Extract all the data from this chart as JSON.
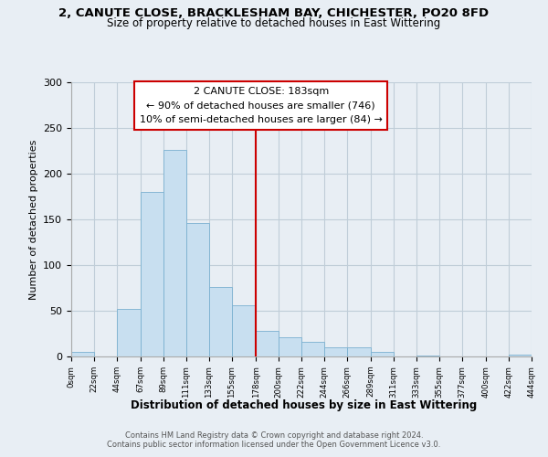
{
  "title1": "2, CANUTE CLOSE, BRACKLESHAM BAY, CHICHESTER, PO20 8FD",
  "title2": "Size of property relative to detached houses in East Wittering",
  "xlabel": "Distribution of detached houses by size in East Wittering",
  "ylabel": "Number of detached properties",
  "bar_color": "#c8dff0",
  "bar_edge_color": "#7ab0d0",
  "vline_x": 178,
  "vline_color": "#cc0000",
  "annotation_title": "2 CANUTE CLOSE: 183sqm",
  "annotation_line1": "← 90% of detached houses are smaller (746)",
  "annotation_line2": "10% of semi-detached houses are larger (84) →",
  "bin_edges": [
    0,
    22,
    44,
    67,
    89,
    111,
    133,
    155,
    178,
    200,
    222,
    244,
    266,
    289,
    311,
    333,
    355,
    377,
    400,
    422,
    444
  ],
  "bin_labels": [
    "0sqm",
    "22sqm",
    "44sqm",
    "67sqm",
    "89sqm",
    "111sqm",
    "133sqm",
    "155sqm",
    "178sqm",
    "200sqm",
    "222sqm",
    "244sqm",
    "266sqm",
    "289sqm",
    "311sqm",
    "333sqm",
    "355sqm",
    "377sqm",
    "400sqm",
    "422sqm",
    "444sqm"
  ],
  "counts": [
    5,
    0,
    52,
    180,
    226,
    146,
    76,
    56,
    28,
    21,
    16,
    10,
    10,
    5,
    0,
    1,
    0,
    0,
    0,
    2
  ],
  "ylim": [
    0,
    300
  ],
  "xlim": [
    0,
    444
  ],
  "yticks": [
    0,
    50,
    100,
    150,
    200,
    250,
    300
  ],
  "footer1": "Contains HM Land Registry data © Crown copyright and database right 2024.",
  "footer2": "Contains public sector information licensed under the Open Government Licence v3.0.",
  "background_color": "#e8eef4",
  "plot_bg_color": "#e8eef4",
  "grid_color": "#c0cdd8"
}
